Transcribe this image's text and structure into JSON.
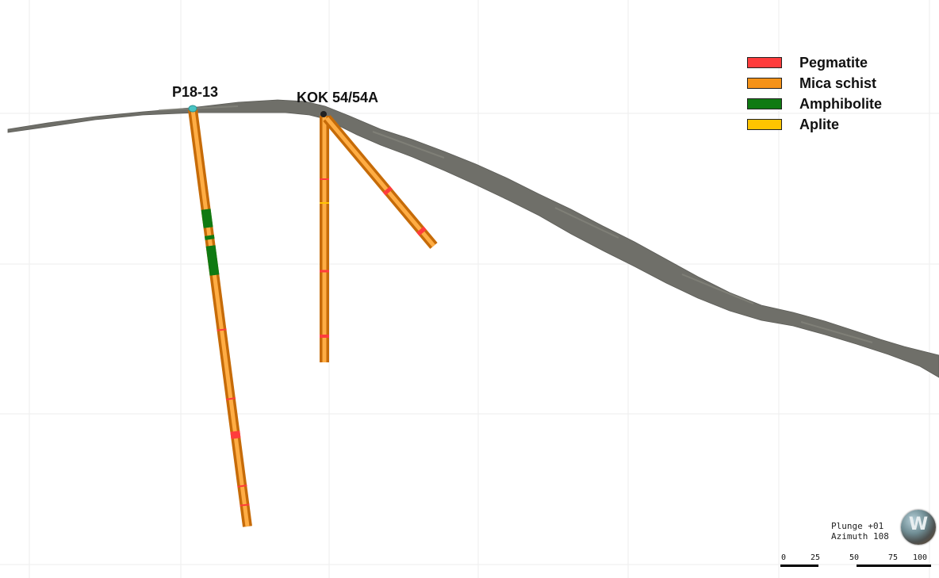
{
  "holes": [
    {
      "name": "P18-13"
    },
    {
      "name": "KOK 54/54A"
    }
  ],
  "legend": [
    {
      "label": "Pegmatite",
      "color": "#ff3c3c"
    },
    {
      "label": "Mica schist",
      "color": "#f59218"
    },
    {
      "label": "Amphibolite",
      "color": "#0f7a12"
    },
    {
      "label": "Aplite",
      "color": "#ffc400"
    }
  ],
  "colors": {
    "topography": "#6e6e68",
    "grid": "#ececec",
    "mica_schist": "#f59218",
    "pegmatite": "#ff3c3c",
    "amphibolite": "#0f7a12",
    "aplite": "#ffc400",
    "collar": "#49c4c4"
  },
  "orientation": {
    "plunge": "Plunge +01",
    "azimuth": "Azimuth 108"
  },
  "scale": {
    "ticks": [
      "0",
      "25",
      "50",
      "75",
      "100"
    ]
  }
}
